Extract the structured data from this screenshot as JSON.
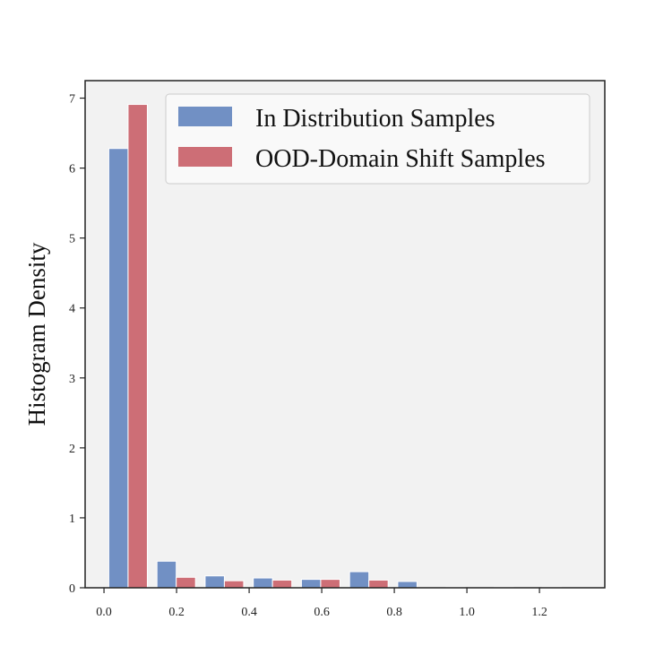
{
  "chart_data": {
    "type": "bar",
    "title": "",
    "xlabel": "",
    "ylabel": "Histogram Density",
    "xlim": [
      -0.052,
      1.38
    ],
    "ylim": [
      0,
      7.25
    ],
    "xticks": [
      0.0,
      0.2,
      0.4,
      0.6,
      0.8,
      1.0,
      1.2
    ],
    "xtick_labels": [
      "0.0",
      "0.2",
      "0.4",
      "0.6",
      "0.8",
      "1.0",
      "1.2"
    ],
    "yticks": [
      0,
      1,
      2,
      3,
      4,
      5,
      6,
      7
    ],
    "ytick_labels": [
      "0",
      "1",
      "2",
      "3",
      "4",
      "5",
      "6",
      "7"
    ],
    "grid": false,
    "legend_position": "top-right",
    "bin_width": 0.1327,
    "bin_starts": [
      0.0,
      0.1327,
      0.2654,
      0.3981,
      0.5308,
      0.6635,
      0.7962,
      0.9289,
      1.0616,
      1.1943
    ],
    "series": [
      {
        "name": "In Distribution Samples",
        "color": "#7190c4",
        "values": [
          6.28,
          0.38,
          0.17,
          0.14,
          0.12,
          0.23,
          0.09,
          0.01,
          0.01,
          0.01
        ]
      },
      {
        "name": "OOD-Domain Shift Samples",
        "color": "#cd6e76",
        "values": [
          6.91,
          0.15,
          0.1,
          0.11,
          0.12,
          0.11,
          0.0,
          0.0,
          0.0,
          0.0
        ]
      }
    ],
    "colors": {
      "plot_background": "#f2f2f2",
      "axes": "#222222"
    }
  }
}
